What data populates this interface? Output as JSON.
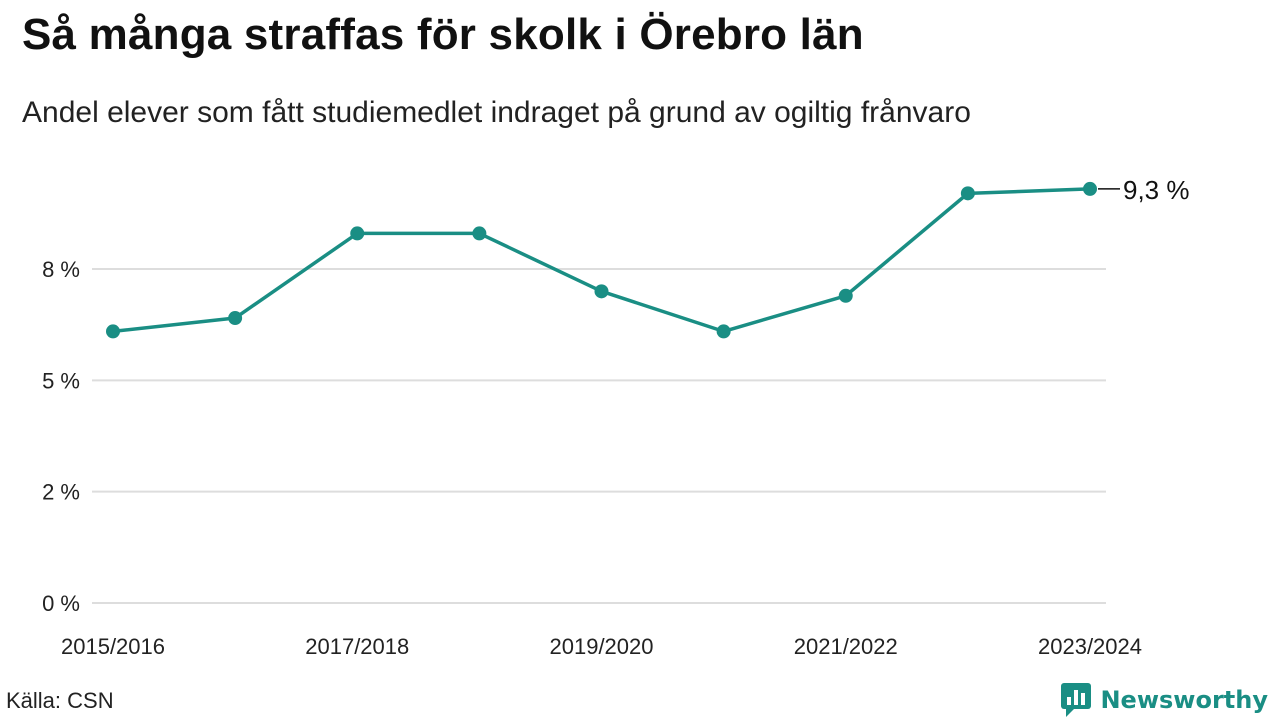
{
  "header": {
    "title": "Så många straffas för skolk i Örebro län",
    "subtitle": "Andel elever som fått studiemedlet indraget på grund av ogiltig frånvaro"
  },
  "footer": {
    "source": "Källa: CSN",
    "brand": "Newsworthy"
  },
  "colors": {
    "line": "#1a8e84",
    "grid": "#dddddd",
    "brand": "#1a8e84"
  },
  "chart_data": {
    "type": "line",
    "title": "Så många straffas för skolk i Örebro län",
    "subtitle": "Andel elever som fått studiemedlet indraget på grund av ogiltig frånvaro",
    "xlabel": "",
    "ylabel": "",
    "x": [
      "2015/2016",
      "2016/2017",
      "2017/2018",
      "2018/2019",
      "2019/2020",
      "2020/2021",
      "2021/2022",
      "2022/2023",
      "2023/2024"
    ],
    "x_tick_labels": [
      "2015/2016",
      "",
      "2017/2018",
      "",
      "2019/2020",
      "",
      "2021/2022",
      "",
      "2023/2024"
    ],
    "series": [
      {
        "values": [
          6.1,
          6.4,
          8.3,
          8.3,
          7.0,
          6.1,
          6.9,
          9.2,
          9.3
        ]
      }
    ],
    "y_ticks": [
      0,
      2.5,
      5,
      7.5
    ],
    "y_tick_labels": [
      "0 %",
      "2 %",
      "5 %",
      "8 %"
    ],
    "ylim": [
      0,
      9.5
    ],
    "grid": true,
    "end_label": "9,3 %"
  }
}
